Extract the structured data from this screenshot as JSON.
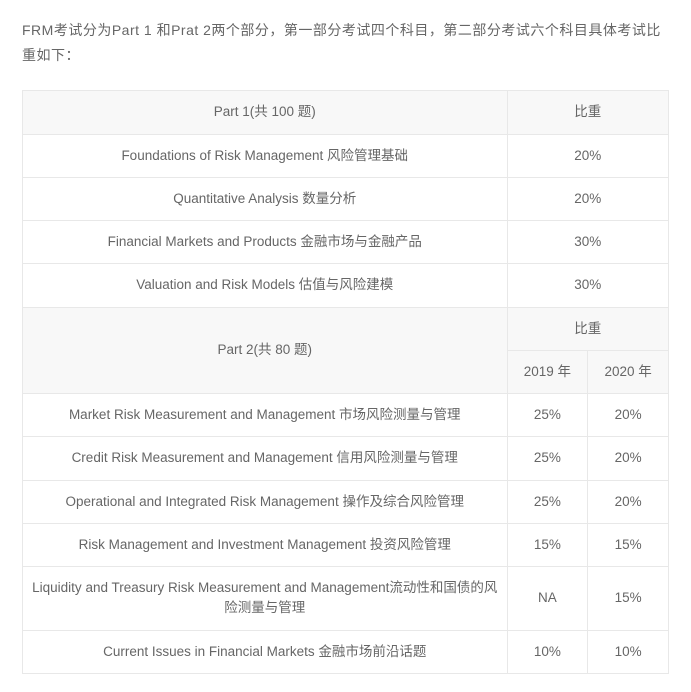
{
  "intro": "FRM考试分为Part 1 和Prat 2两个部分，第一部分考试四个科目，第二部分考试六个科目具体考试比重如下：",
  "part1": {
    "header": "Part 1(共 100 题)",
    "weight_label": "比重",
    "rows": [
      {
        "subject": "Foundations of Risk Management 风险管理基础",
        "weight": "20%"
      },
      {
        "subject": "Quantitative Analysis 数量分析",
        "weight": "20%"
      },
      {
        "subject": "Financial Markets and Products 金融市场与金融产品",
        "weight": "30%"
      },
      {
        "subject": "Valuation and Risk Models 估值与风险建模",
        "weight": "30%"
      }
    ]
  },
  "part2": {
    "header": "Part 2(共 80 题)",
    "weight_label": "比重",
    "year1": "2019 年",
    "year2": "2020 年",
    "rows": [
      {
        "subject": "Market Risk Measurement and Management 市场风险测量与管理",
        "w1": "25%",
        "w2": "20%"
      },
      {
        "subject": "Credit Risk Measurement and Management 信用风险测量与管理",
        "w1": "25%",
        "w2": "20%"
      },
      {
        "subject": "Operational and Integrated Risk Management 操作及综合风险管理",
        "w1": "25%",
        "w2": "20%"
      },
      {
        "subject": "Risk Management and Investment Management 投资风险管理",
        "w1": "15%",
        "w2": "15%"
      },
      {
        "subject": "Liquidity and Treasury Risk Measurement and Management流动性和国债的风险测量与管理",
        "w1": "NA",
        "w2": "15%"
      },
      {
        "subject": "Current Issues in Financial Markets 金融市场前沿话题",
        "w1": "10%",
        "w2": "10%"
      }
    ]
  }
}
